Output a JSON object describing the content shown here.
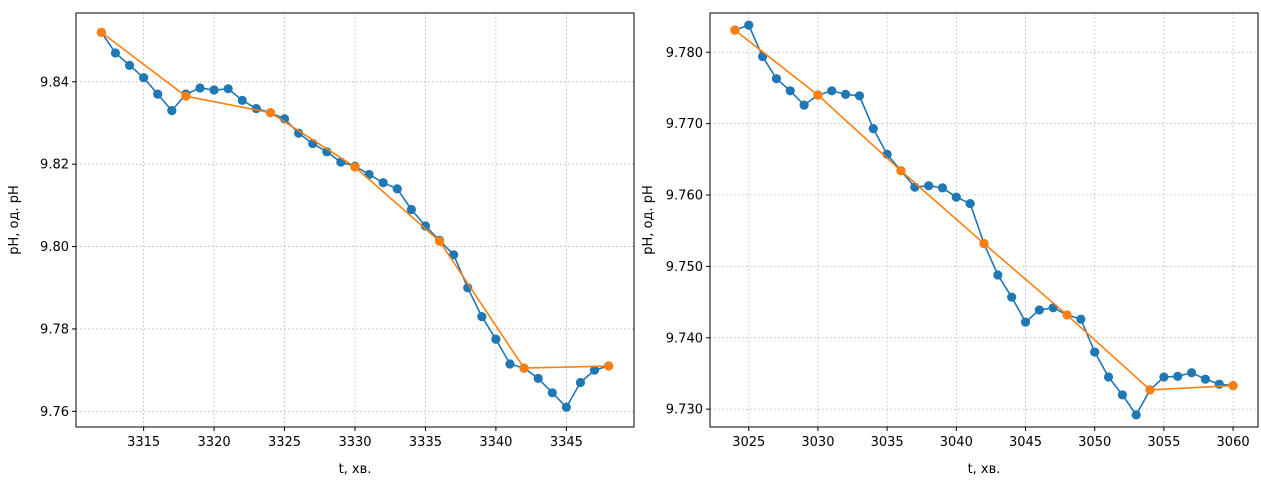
{
  "chart_data": [
    {
      "type": "line",
      "xlabel": "t, хв.",
      "ylabel": "pH, од. pH",
      "xlim": [
        3310.2,
        3349.8
      ],
      "ylim": [
        9.7562,
        9.8567
      ],
      "xticks": [
        3315,
        3320,
        3325,
        3330,
        3335,
        3340,
        3345
      ],
      "yticks": [
        9.76,
        9.78,
        9.8,
        9.82,
        9.84
      ],
      "ytick_decimals": 2,
      "grid": true,
      "series": [
        {
          "color": "#1f77b4",
          "x": [
            3312,
            3313,
            3314,
            3315,
            3316,
            3317,
            3318,
            3319,
            3320,
            3321,
            3322,
            3323,
            3324,
            3325,
            3326,
            3327,
            3328,
            3329,
            3330,
            3331,
            3332,
            3333,
            3334,
            3335,
            3336,
            3337,
            3338,
            3339,
            3340,
            3341,
            3342,
            3343,
            3344,
            3345,
            3346,
            3347,
            3348
          ],
          "y": [
            9.852,
            9.847,
            9.844,
            9.841,
            9.837,
            9.833,
            9.837,
            9.8385,
            9.838,
            9.8383,
            9.8355,
            9.8335,
            9.8325,
            9.831,
            9.8275,
            9.825,
            9.823,
            9.8205,
            9.8195,
            9.8175,
            9.8155,
            9.814,
            9.809,
            9.805,
            9.8015,
            9.798,
            9.79,
            9.783,
            9.7775,
            9.7715,
            9.7705,
            9.768,
            9.7645,
            9.761,
            9.767,
            9.77,
            9.771
          ]
        },
        {
          "color": "#ff7f0e",
          "x": [
            3312,
            3318,
            3324,
            3330,
            3336,
            3342,
            3348
          ],
          "y": [
            9.852,
            9.8365,
            9.8325,
            9.8193,
            9.8013,
            9.7705,
            9.771
          ]
        }
      ]
    },
    {
      "type": "line",
      "xlabel": "t, хв.",
      "ylabel": "pH, од. pH",
      "xlim": [
        3022.2,
        3061.8
      ],
      "ylim": [
        9.7275,
        9.7855
      ],
      "xticks": [
        3025,
        3030,
        3035,
        3040,
        3045,
        3050,
        3055,
        3060
      ],
      "yticks": [
        9.73,
        9.74,
        9.75,
        9.76,
        9.77,
        9.78
      ],
      "ytick_decimals": 3,
      "grid": true,
      "series": [
        {
          "color": "#1f77b4",
          "x": [
            3024,
            3025,
            3026,
            3027,
            3028,
            3029,
            3030,
            3031,
            3032,
            3033,
            3034,
            3035,
            3036,
            3037,
            3038,
            3039,
            3040,
            3041,
            3042,
            3043,
            3044,
            3045,
            3046,
            3047,
            3048,
            3049,
            3050,
            3051,
            3052,
            3053,
            3054,
            3055,
            3056,
            3057,
            3058,
            3059,
            3060
          ],
          "y": [
            9.7831,
            9.7838,
            9.7794,
            9.7763,
            9.7746,
            9.7726,
            9.774,
            9.7746,
            9.7741,
            9.7739,
            9.7693,
            9.7657,
            9.7634,
            9.7611,
            9.7613,
            9.761,
            9.7597,
            9.7588,
            9.7532,
            9.7488,
            9.7457,
            9.7422,
            9.7439,
            9.7442,
            9.7432,
            9.7426,
            9.738,
            9.7345,
            9.732,
            9.7292,
            9.7327,
            9.7345,
            9.7346,
            9.7351,
            9.7342,
            9.7335,
            9.7333
          ]
        },
        {
          "color": "#ff7f0e",
          "x": [
            3024,
            3030,
            3036,
            3042,
            3048,
            3054,
            3060
          ],
          "y": [
            9.7831,
            9.774,
            9.7634,
            9.7532,
            9.7432,
            9.7327,
            9.7333
          ]
        }
      ]
    }
  ]
}
